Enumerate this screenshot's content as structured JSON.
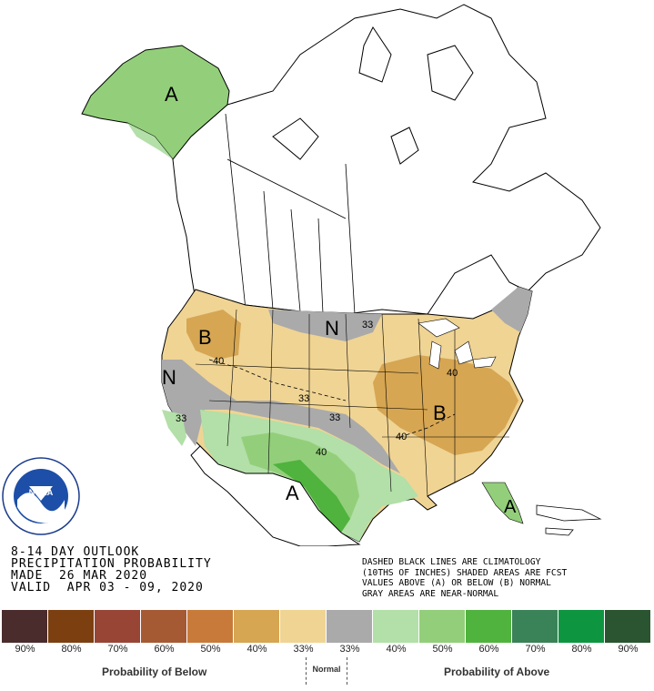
{
  "title": {
    "line1": "8-14 DAY OUTLOOK",
    "line2": "PRECIPITATION PROBABILITY",
    "line3": "MADE  26 MAR 2020",
    "line4": "VALID  APR 03 - 09, 2020"
  },
  "notes": {
    "line1": "DASHED BLACK LINES ARE CLIMATOLOGY",
    "line2": "(10THS OF INCHES) SHADED AREAS ARE FCST",
    "line3": "VALUES ABOVE (A) OR BELOW (B) NORMAL",
    "line4": "GRAY AREAS ARE NEAR-NORMAL"
  },
  "map_labels": {
    "alaska": "A",
    "northwest": "B",
    "northwest_contour": "40",
    "north_plains": "N",
    "north_plains_contour": "33",
    "west_coast": "N",
    "california_contour": "33",
    "central_contour": "33",
    "central_contour_2": "33",
    "east": "B",
    "ohio_valley_contour": "40",
    "tennessee_contour": "40",
    "southern_plains_contour": "40",
    "south_texas": "A",
    "florida": "A"
  },
  "legend": {
    "below_label": "Probability of Below",
    "normal_label": "Normal",
    "above_label": "Probability of Above",
    "swatches": [
      {
        "label": "90%",
        "color": "#4a2c2c"
      },
      {
        "label": "80%",
        "color": "#7b3f10"
      },
      {
        "label": "70%",
        "color": "#994535"
      },
      {
        "label": "60%",
        "color": "#a55a34"
      },
      {
        "label": "50%",
        "color": "#c87a3a"
      },
      {
        "label": "40%",
        "color": "#d6a653"
      },
      {
        "label": "33%",
        "color": "#f0d494"
      },
      {
        "label": "33%",
        "color": "#aaaaaa"
      },
      {
        "label": "40%",
        "color": "#b3dfa8"
      },
      {
        "label": "50%",
        "color": "#93cf7a"
      },
      {
        "label": "60%",
        "color": "#4fb33e"
      },
      {
        "label": "70%",
        "color": "#3a8258"
      },
      {
        "label": "80%",
        "color": "#0e9540"
      },
      {
        "label": "90%",
        "color": "#2a5530"
      }
    ]
  },
  "logo": {
    "text": "NOAA"
  }
}
